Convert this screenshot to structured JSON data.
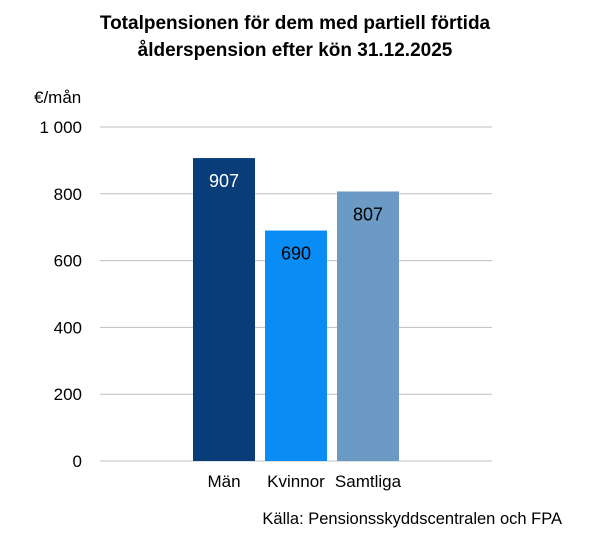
{
  "chart_data": {
    "type": "bar",
    "title_line1": "Totalpensionen för dem med partiell förtida",
    "title_line2": "ålderspension efter kön 31.12.2025",
    "ylabel": "€/mån",
    "categories": [
      "Män",
      "Kvinnor",
      "Samtliga"
    ],
    "values": [
      907,
      690,
      807
    ],
    "value_labels": [
      "907",
      "690",
      "807"
    ],
    "bar_colors": [
      "#083D79",
      "#0A8CF5",
      "#6B9AC4"
    ],
    "label_colors": [
      "#ffffff",
      "#000000",
      "#000000"
    ],
    "ylim": [
      0,
      1000
    ],
    "yticks": [
      0,
      200,
      400,
      600,
      800,
      1000
    ],
    "ytick_labels": [
      "0",
      "200",
      "400",
      "600",
      "800",
      "1 000"
    ],
    "grid": true,
    "grid_color": "#BFBFBF"
  },
  "source": "Källa: Pensionsskyddscentralen  och FPA"
}
